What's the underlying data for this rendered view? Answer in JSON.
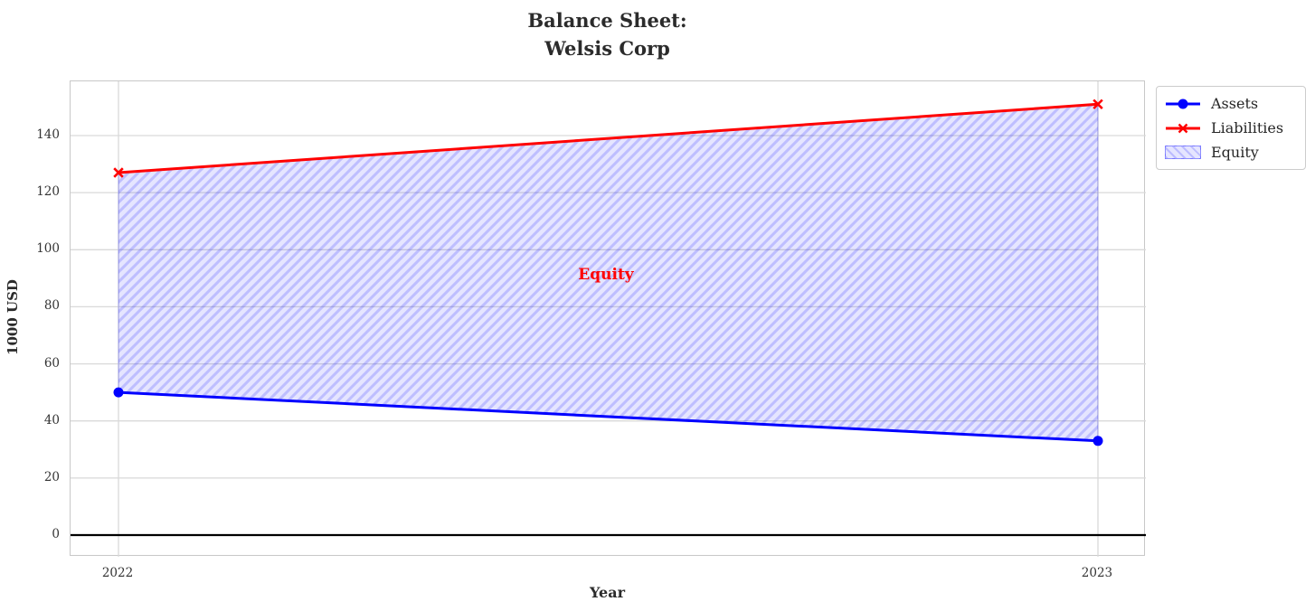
{
  "title": {
    "line1": "Balance Sheet:",
    "line2": "Welsis Corp"
  },
  "axis": {
    "xlabel": "Year",
    "ylabel": "1000 USD"
  },
  "legend": {
    "items": [
      {
        "label": "Assets"
      },
      {
        "label": "Liabilities"
      },
      {
        "label": "Equity"
      }
    ]
  },
  "annotation": {
    "text": "Equity",
    "color": "#ff0000"
  },
  "colors": {
    "assets_line": "#0000ff",
    "liabilities_line": "#ff0000",
    "equity_fill": "#0000ff",
    "equity_fill_alpha": "0.10",
    "annotation_text": "#ff0000",
    "grid": "#d9d9d9",
    "spine": "#c8c8c8",
    "zero_line": "#000000",
    "text": "#262626"
  },
  "chart_data": {
    "type": "line",
    "title": "Balance Sheet:\nWelsis Corp",
    "xlabel": "Year",
    "ylabel": "1000 USD",
    "x": [
      2022,
      2023
    ],
    "x_tick_labels": [
      "2022",
      "2023"
    ],
    "y_ticks": [
      0,
      20,
      40,
      60,
      80,
      100,
      120,
      140
    ],
    "ylim": [
      -7.6,
      159.0
    ],
    "x_margin_frac": 0.0446,
    "grid": true,
    "legend_position": "outside upper right",
    "axhline": 0,
    "series": [
      {
        "name": "Assets",
        "values": [
          50,
          33
        ],
        "color": "#0000ff",
        "marker": "circle",
        "line_width": 3
      },
      {
        "name": "Liabilities",
        "values": [
          127,
          151
        ],
        "color": "#ff0000",
        "marker": "x",
        "line_width": 3
      }
    ],
    "fill_between": {
      "label": "Equity",
      "lower_series": "Assets",
      "upper_series": "Liabilities",
      "hatch": "/",
      "color": "#0000ff",
      "alpha": 0.1
    },
    "annotation": {
      "text": "Equity",
      "x": 2022.5,
      "y": 91,
      "color": "#ff0000",
      "bold": true
    }
  }
}
